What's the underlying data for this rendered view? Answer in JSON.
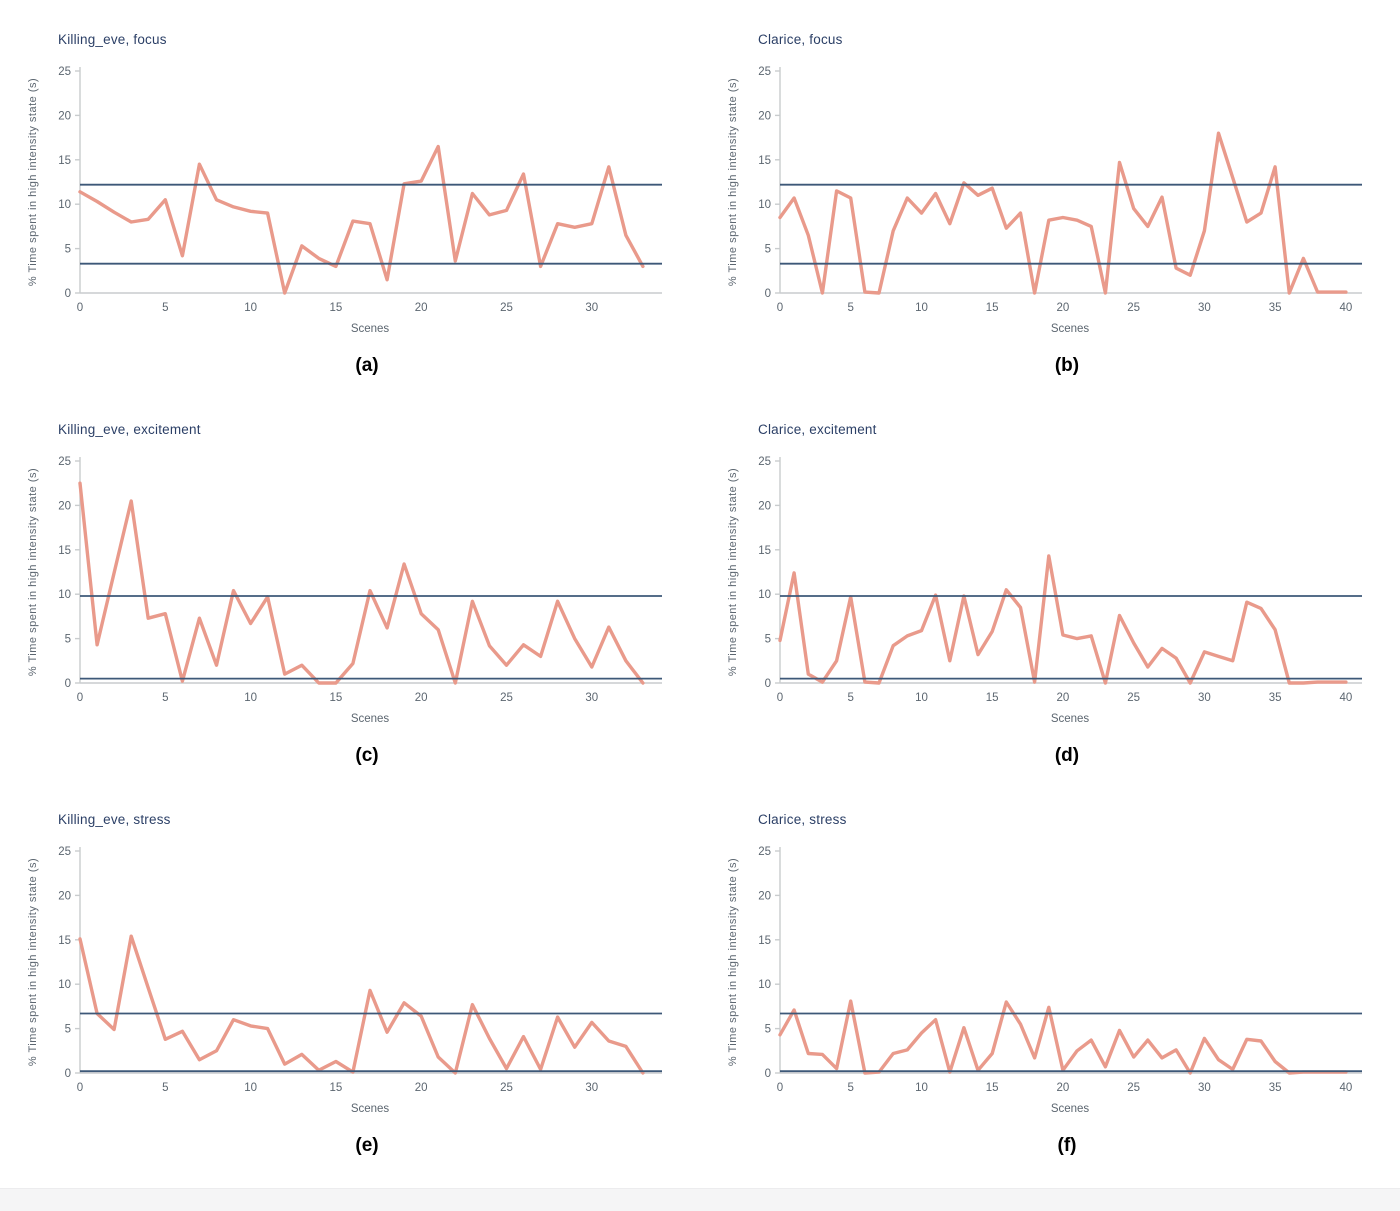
{
  "styles": {
    "line_color": "#e99a8b",
    "threshold_color": "#3d5878",
    "title_color": "#2b3f66",
    "tick_color": "#5c6670",
    "axis_color": "#c9ccce",
    "caption_color": "#000000",
    "footer_band_color": "#f5f5f6"
  },
  "chart_data": [
    {
      "id": "a",
      "caption": "(a)",
      "title": "Killing_eve, focus",
      "type": "line",
      "xlabel": "Scenes",
      "ylabel": "% Time spent in high intensity state (s)",
      "ylim": [
        0,
        25
      ],
      "yticks": [
        0,
        5,
        10,
        15,
        20,
        25
      ],
      "xticks": [
        0,
        5,
        10,
        15,
        20,
        25,
        30
      ],
      "xaxis_end": 34,
      "x_start": 0,
      "grid": false,
      "thresholds": {
        "upper": 12.2,
        "lower": 3.3
      },
      "values": [
        11.4,
        10.3,
        9.1,
        8.0,
        8.3,
        10.5,
        4.2,
        14.5,
        10.5,
        9.7,
        9.2,
        9.0,
        0.0,
        5.3,
        3.9,
        3.0,
        8.1,
        7.8,
        1.5,
        12.3,
        12.6,
        16.5,
        3.6,
        11.2,
        8.8,
        9.3,
        13.4,
        3.0,
        7.8,
        7.4,
        7.8,
        14.2,
        6.5,
        3.0
      ]
    },
    {
      "id": "b",
      "caption": "(b)",
      "title": "Clarice, focus",
      "type": "line",
      "xlabel": "Scenes",
      "ylabel": "% Time spent in high intensity state (s)",
      "ylim": [
        0,
        25
      ],
      "yticks": [
        0,
        5,
        10,
        15,
        20,
        25
      ],
      "xticks": [
        0,
        5,
        10,
        15,
        20,
        25,
        30,
        35,
        40
      ],
      "xaxis_end": 41,
      "x_start": 0,
      "grid": false,
      "thresholds": {
        "upper": 12.2,
        "lower": 3.3
      },
      "values": [
        8.5,
        10.7,
        6.5,
        0.0,
        11.5,
        10.7,
        0.1,
        0.0,
        7.0,
        10.7,
        9.0,
        11.2,
        7.8,
        12.4,
        11.0,
        11.8,
        7.3,
        9.0,
        0.0,
        8.2,
        8.5,
        8.2,
        7.5,
        0.0,
        14.7,
        9.5,
        7.5,
        10.8,
        2.8,
        2.0,
        7.0,
        18.0,
        13.0,
        8.0,
        9.0,
        14.2,
        0.0,
        3.9,
        0.1,
        0.1,
        0.1
      ]
    },
    {
      "id": "c",
      "caption": "(c)",
      "title": "Killing_eve, excitement",
      "type": "line",
      "xlabel": "Scenes",
      "ylabel": "% Time spent in high intensity state (s)",
      "ylim": [
        0,
        25
      ],
      "yticks": [
        0,
        5,
        10,
        15,
        20,
        25
      ],
      "xticks": [
        0,
        5,
        10,
        15,
        20,
        25,
        30
      ],
      "xaxis_end": 34,
      "x_start": 0,
      "grid": false,
      "thresholds": {
        "upper": 9.8,
        "lower": 0.5
      },
      "values": [
        22.5,
        4.3,
        12.4,
        20.5,
        7.3,
        7.8,
        0.2,
        7.3,
        2.0,
        10.4,
        6.7,
        9.7,
        1.0,
        2.0,
        0.0,
        0.0,
        2.2,
        10.4,
        6.2,
        13.4,
        7.8,
        6.0,
        0.0,
        9.2,
        4.2,
        2.0,
        4.3,
        3.0,
        9.2,
        5.0,
        1.8,
        6.3,
        2.5,
        0.0
      ]
    },
    {
      "id": "d",
      "caption": "(d)",
      "title": "Clarice, excitement",
      "type": "line",
      "xlabel": "Scenes",
      "ylabel": "% Time spent in high intensity state (s)",
      "ylim": [
        0,
        25
      ],
      "yticks": [
        0,
        5,
        10,
        15,
        20,
        25
      ],
      "xticks": [
        0,
        5,
        10,
        15,
        20,
        25,
        30,
        35,
        40
      ],
      "xaxis_end": 41,
      "x_start": 0,
      "grid": false,
      "thresholds": {
        "upper": 9.8,
        "lower": 0.5
      },
      "values": [
        4.8,
        12.4,
        1.0,
        0.1,
        2.5,
        9.7,
        0.1,
        0.0,
        4.2,
        5.3,
        5.9,
        9.9,
        2.5,
        9.8,
        3.2,
        5.8,
        10.5,
        8.5,
        0.1,
        14.3,
        5.4,
        5.0,
        5.3,
        0.0,
        7.6,
        4.5,
        1.8,
        3.9,
        2.8,
        0.0,
        3.5,
        3.0,
        2.5,
        9.1,
        8.4,
        6.0,
        0.0,
        0.0,
        0.1,
        0.1,
        0.1
      ]
    },
    {
      "id": "e",
      "caption": "(e)",
      "title": "Killing_eve, stress",
      "type": "line",
      "xlabel": "Scenes",
      "ylabel": "% Time spent in high intensity state (s)",
      "ylim": [
        0,
        25
      ],
      "yticks": [
        0,
        5,
        10,
        15,
        20,
        25
      ],
      "xticks": [
        0,
        5,
        10,
        15,
        20,
        25,
        30
      ],
      "xaxis_end": 34,
      "x_start": 0,
      "grid": false,
      "thresholds": {
        "upper": 6.7,
        "lower": 0.2
      },
      "values": [
        15.1,
        6.7,
        4.9,
        15.4,
        9.6,
        3.8,
        4.7,
        1.5,
        2.5,
        6.0,
        5.3,
        5.0,
        1.0,
        2.1,
        0.3,
        1.3,
        0.1,
        9.3,
        4.6,
        7.9,
        6.4,
        1.8,
        0.0,
        7.7,
        3.9,
        0.5,
        4.1,
        0.4,
        6.3,
        2.9,
        5.7,
        3.6,
        3.0,
        0.0
      ]
    },
    {
      "id": "f",
      "caption": "(f)",
      "title": "Clarice, stress",
      "type": "line",
      "xlabel": "Scenes",
      "ylabel": "% Time spent in high intensity state (s)",
      "ylim": [
        0,
        25
      ],
      "yticks": [
        0,
        5,
        10,
        15,
        20,
        25
      ],
      "xticks": [
        0,
        5,
        10,
        15,
        20,
        25,
        30,
        35,
        40
      ],
      "xaxis_end": 41,
      "x_start": 0,
      "grid": false,
      "thresholds": {
        "upper": 6.7,
        "lower": 0.2
      },
      "values": [
        4.3,
        7.1,
        2.2,
        2.1,
        0.5,
        8.1,
        0.0,
        0.1,
        2.2,
        2.6,
        4.5,
        6.0,
        0.1,
        5.1,
        0.3,
        2.2,
        8.0,
        5.5,
        1.7,
        7.4,
        0.3,
        2.5,
        3.7,
        0.7,
        4.8,
        1.8,
        3.7,
        1.7,
        2.6,
        0.0,
        3.9,
        1.5,
        0.4,
        3.8,
        3.6,
        1.3,
        0.0,
        0.1,
        0.1,
        0.1,
        0.1
      ]
    }
  ]
}
